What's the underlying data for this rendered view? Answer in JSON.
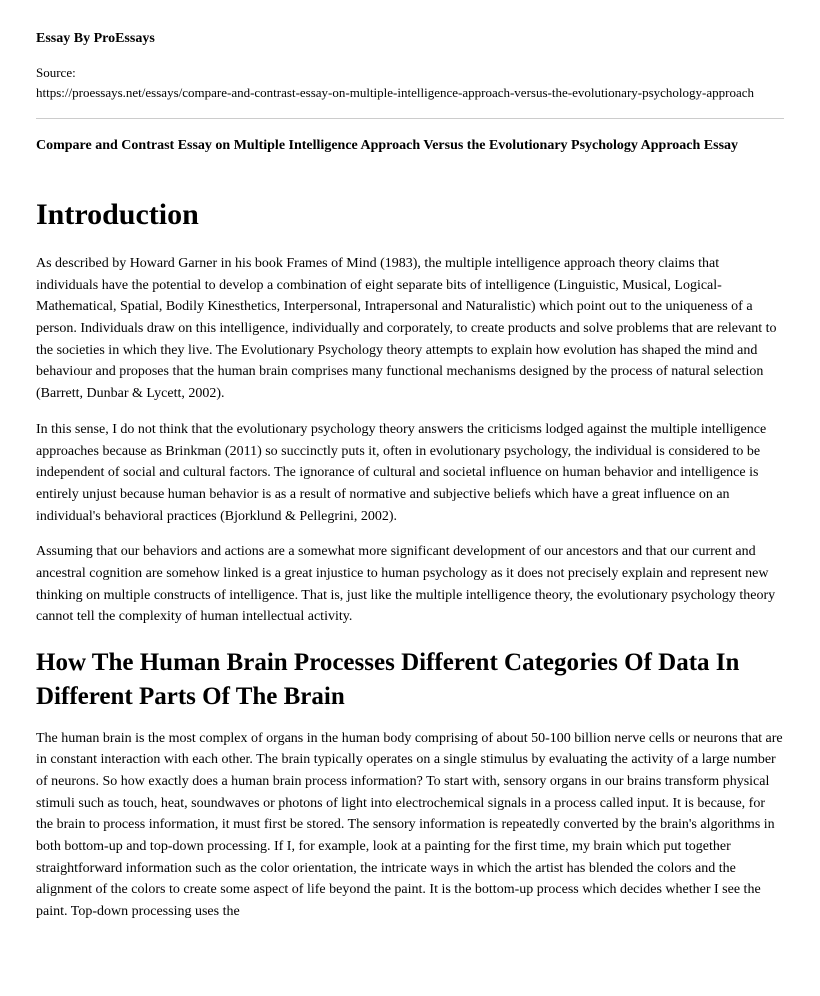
{
  "byline": "Essay By ProEssays",
  "source": {
    "label": "Source:",
    "url": "https://proessays.net/essays/compare-and-contrast-essay-on-multiple-intelligence-approach-versus-the-evolutionary-psychology-approach"
  },
  "essay_title": "Compare and Contrast Essay on Multiple Intelligence Approach Versus the Evolutionary Psychology Approach Essay",
  "heading_intro": "Introduction",
  "paragraphs": {
    "p1": "As described by Howard Garner in his book Frames of Mind (1983), the multiple intelligence approach theory claims that individuals have the potential to develop a combination of eight separate bits of intelligence (Linguistic, Musical, Logical-Mathematical, Spatial, Bodily Kinesthetics, Interpersonal, Intrapersonal and Naturalistic) which point out to the uniqueness of a person. Individuals draw on this intelligence, individually and corporately, to create products and solve problems that are relevant to the societies in which they live. The Evolutionary Psychology theory attempts to explain how evolution has shaped the mind and behaviour and proposes that the human brain comprises many functional mechanisms designed by the process of natural selection (Barrett, Dunbar & Lycett, 2002).",
    "p2": "In this sense, I do not think that the evolutionary psychology theory answers the criticisms lodged against the multiple intelligence approaches because as Brinkman (2011) so succinctly puts it, often in evolutionary psychology, the individual is considered to be independent of social and cultural factors. The ignorance of cultural and societal influence on human behavior and intelligence is entirely unjust because human behavior is as a result of normative and subjective beliefs which have a great influence on an individual's behavioral practices (Bjorklund & Pellegrini, 2002).",
    "p3": "Assuming that our behaviors and actions are a somewhat more significant development of our ancestors and that our current and ancestral cognition are somehow linked is a great injustice to human psychology as it does not precisely explain and represent new thinking on multiple constructs of intelligence. That is, just like the multiple intelligence theory, the evolutionary psychology theory cannot tell the complexity of human intellectual activity.",
    "p4": "The human brain is the most complex of organs in the human body comprising of about 50-100 billion nerve cells or neurons that are in constant interaction with each other. The brain typically operates on a single stimulus by evaluating the activity of a large number of neurons. So how exactly does a human brain process information? To start with, sensory organs in our brains transform physical stimuli such as touch, heat, soundwaves or photons of light into electrochemical signals in a process called input. It is because, for the brain to process information, it must first be stored. The sensory information is repeatedly converted by the brain's algorithms in both bottom-up and top-down processing. If I, for example, look at a painting for the first time, my brain which put together straightforward information such as the color orientation, the intricate ways in which the artist has blended the colors and the alignment of the colors to create some aspect of life beyond the paint. It is the bottom-up process which decides whether I see the paint. Top-down processing uses the"
  },
  "heading_section2": "How The Human Brain Processes Different Categories Of Data In Different Parts Of The Brain",
  "styles": {
    "body_font_family": "Georgia, 'Times New Roman', serif",
    "background_color": "#ffffff",
    "text_color": "#000000",
    "hr_color": "#cccccc",
    "byline_fontsize": 14,
    "source_fontsize": 13,
    "essay_title_fontsize": 14,
    "h1_fontsize": 30,
    "h2_fontsize": 25,
    "p_fontsize": 14
  }
}
